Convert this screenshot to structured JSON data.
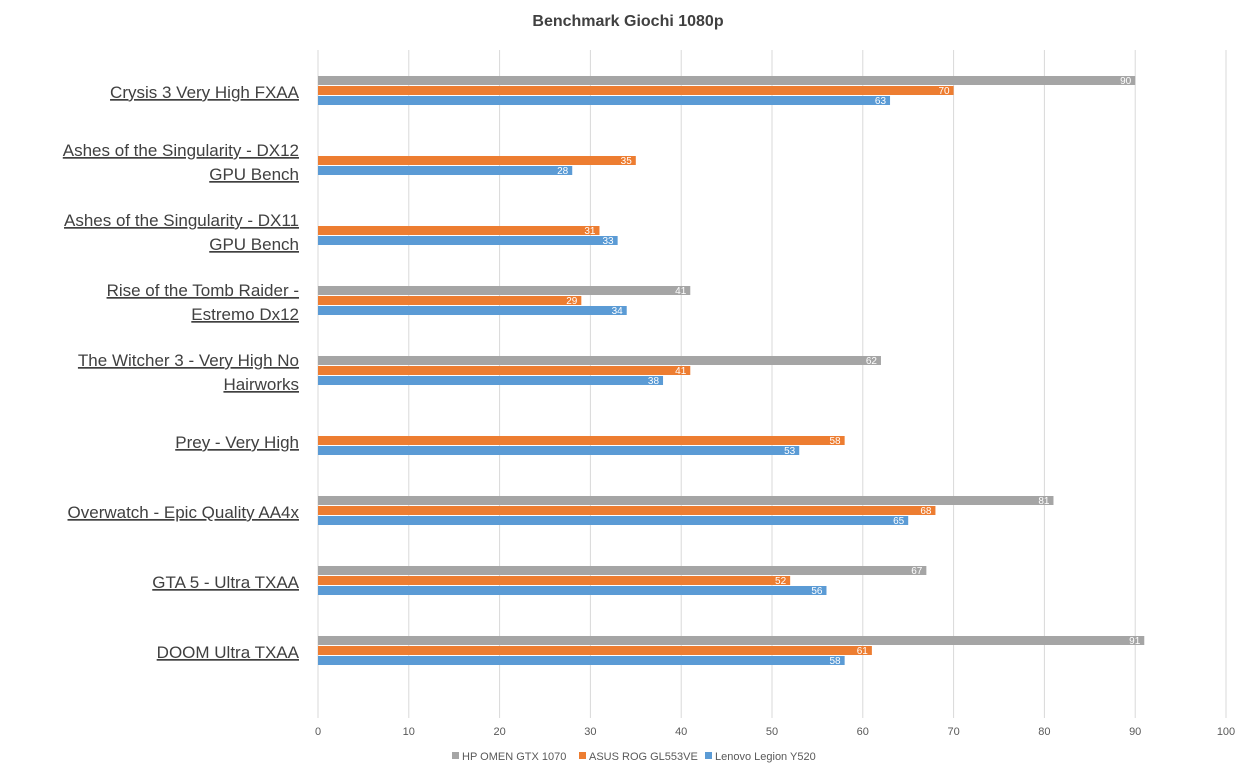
{
  "chart_data": {
    "type": "bar",
    "orientation": "horizontal",
    "title": "Benchmark Giochi 1080p",
    "categories": [
      "Crysis 3 Very High FXAA",
      "Ashes of the Singularity - DX12 GPU Bench",
      "Ashes of the Singularity - DX11 GPU Bench",
      "Rise of the Tomb Raider - Estremo Dx12",
      "The Witcher 3 - Very High No Hairworks",
      "Prey - Very High",
      "Overwatch - Epic Quality AA4x",
      "GTA 5 - Ultra TXAA",
      "DOOM Ultra TXAA"
    ],
    "series": [
      {
        "name": "HP OMEN GTX 1070",
        "color": "#a5a5a5",
        "values": [
          90,
          null,
          null,
          41,
          62,
          null,
          81,
          67,
          91
        ]
      },
      {
        "name": "ASUS ROG GL553VE",
        "color": "#ed7d31",
        "values": [
          70,
          35,
          31,
          29,
          41,
          58,
          68,
          52,
          61
        ]
      },
      {
        "name": "Lenovo Legion Y520",
        "color": "#5b9bd5",
        "values": [
          63,
          28,
          33,
          34,
          38,
          53,
          65,
          56,
          58
        ]
      }
    ],
    "xlim": [
      0,
      100
    ],
    "xticks": [
      0,
      10,
      20,
      30,
      40,
      50,
      60,
      70,
      80,
      90,
      100
    ],
    "grid": true,
    "legend_position": "bottom",
    "data_labels": true
  }
}
